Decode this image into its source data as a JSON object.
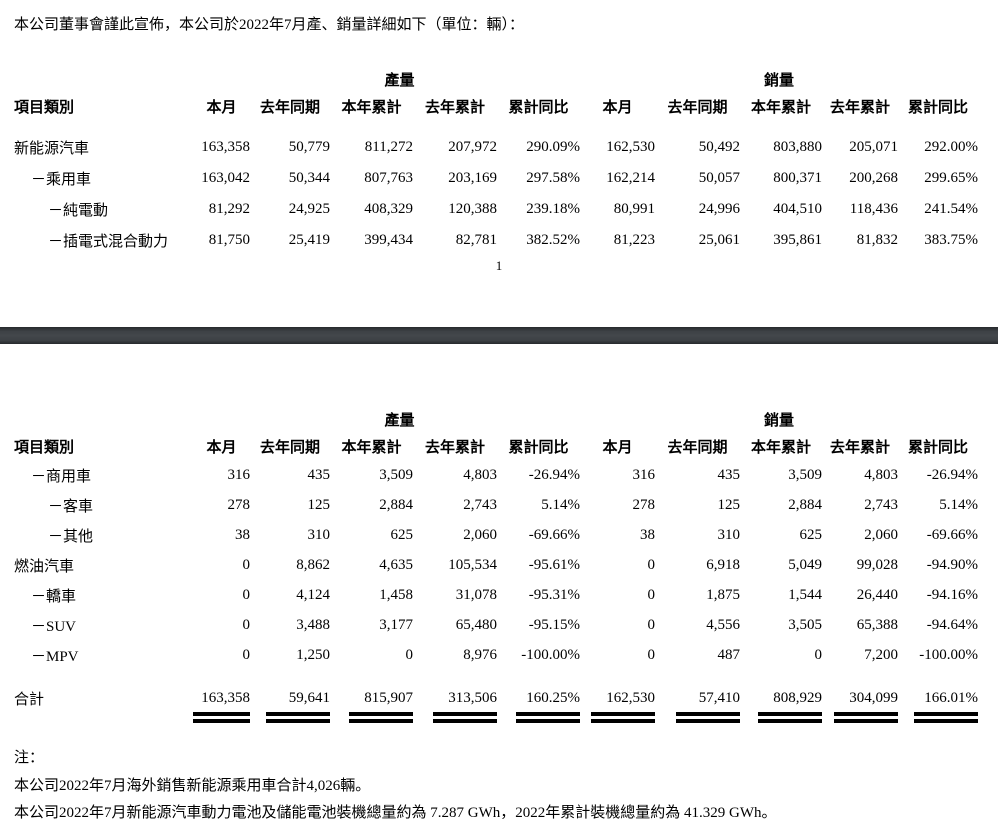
{
  "intro": "本公司董事會謹此宣佈，本公司於2022年7月產、銷量詳細如下（單位：輛）：",
  "page_number": "1",
  "colors": {
    "page_bg": "#ffffff",
    "text": "#000000",
    "page_divider": "#3d4145"
  },
  "table": {
    "group_headers": {
      "production": "產量",
      "sales": "銷量"
    },
    "col_headers": {
      "category": "項目類別",
      "cols": [
        "本月",
        "去年同期",
        "本年累計",
        "去年累計",
        "累計同比",
        "本月",
        "去年同期",
        "本年累計",
        "去年累計",
        "累計同比"
      ]
    }
  },
  "section1": {
    "rows": [
      {
        "label": "新能源汽車",
        "indent": 0,
        "values": [
          "163,358",
          "50,779",
          "811,272",
          "207,972",
          "290.09%",
          "162,530",
          "50,492",
          "803,880",
          "205,071",
          "292.00%"
        ]
      },
      {
        "label": "－乘用車",
        "indent": 1,
        "values": [
          "163,042",
          "50,344",
          "807,763",
          "203,169",
          "297.58%",
          "162,214",
          "50,057",
          "800,371",
          "200,268",
          "299.65%"
        ]
      },
      {
        "label": "－純電動",
        "indent": 2,
        "values": [
          "81,292",
          "24,925",
          "408,329",
          "120,388",
          "239.18%",
          "80,991",
          "24,996",
          "404,510",
          "118,436",
          "241.54%"
        ]
      },
      {
        "label": "－插電式混合動力",
        "indent": 2,
        "values": [
          "81,750",
          "25,419",
          "399,434",
          "82,781",
          "382.52%",
          "81,223",
          "25,061",
          "395,861",
          "81,832",
          "383.75%"
        ]
      }
    ]
  },
  "section2": {
    "rows": [
      {
        "label": "－商用車",
        "indent": 1,
        "values": [
          "316",
          "435",
          "3,509",
          "4,803",
          "-26.94%",
          "316",
          "435",
          "3,509",
          "4,803",
          "-26.94%"
        ]
      },
      {
        "label": "－客車",
        "indent": 2,
        "values": [
          "278",
          "125",
          "2,884",
          "2,743",
          "5.14%",
          "278",
          "125",
          "2,884",
          "2,743",
          "5.14%"
        ]
      },
      {
        "label": "－其他",
        "indent": 2,
        "values": [
          "38",
          "310",
          "625",
          "2,060",
          "-69.66%",
          "38",
          "310",
          "625",
          "2,060",
          "-69.66%"
        ]
      },
      {
        "label": "燃油汽車",
        "indent": 0,
        "values": [
          "0",
          "8,862",
          "4,635",
          "105,534",
          "-95.61%",
          "0",
          "6,918",
          "5,049",
          "99,028",
          "-94.90%"
        ]
      },
      {
        "label": "－轎車",
        "indent": 1,
        "values": [
          "0",
          "4,124",
          "1,458",
          "31,078",
          "-95.31%",
          "0",
          "1,875",
          "1,544",
          "26,440",
          "-94.16%"
        ]
      },
      {
        "label": "－SUV",
        "indent": 1,
        "values": [
          "0",
          "3,488",
          "3,177",
          "65,480",
          "-95.15%",
          "0",
          "4,556",
          "3,505",
          "65,388",
          "-94.64%"
        ]
      },
      {
        "label": "－MPV",
        "indent": 1,
        "values": [
          "0",
          "1,250",
          "0",
          "8,976",
          "-100.00%",
          "0",
          "487",
          "0",
          "7,200",
          "-100.00%"
        ]
      }
    ],
    "total_row": {
      "label": "合計",
      "values": [
        "163,358",
        "59,641",
        "815,907",
        "313,506",
        "160.25%",
        "162,530",
        "57,410",
        "808,929",
        "304,099",
        "166.01%"
      ]
    }
  },
  "notes": {
    "label": "注：",
    "lines": [
      "本公司2022年7月海外銷售新能源乘用車合計4,026輛。",
      "本公司2022年7月新能源汽車動力電池及儲能電池裝機總量約為 7.287 GWh，2022年累計裝機總量約為 41.329 GWh。"
    ]
  }
}
